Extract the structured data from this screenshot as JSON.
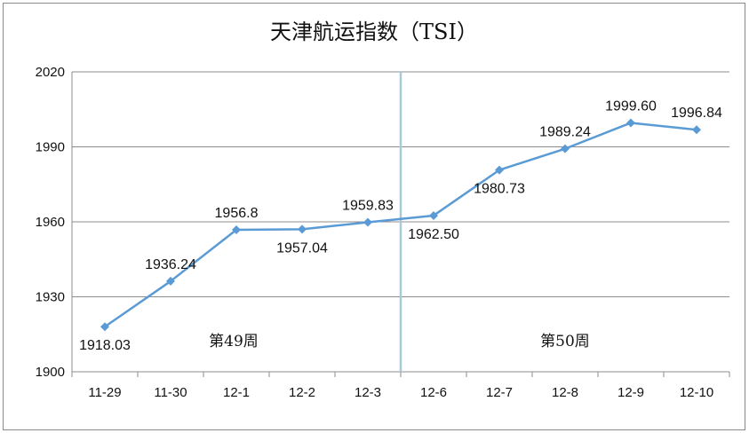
{
  "chart_data": {
    "type": "line",
    "title": "天津航运指数（TSI）",
    "xlabel": "",
    "ylabel": "",
    "categories": [
      "11-29",
      "11-30",
      "12-1",
      "12-2",
      "12-3",
      "12-6",
      "12-7",
      "12-8",
      "12-9",
      "12-10"
    ],
    "series": [
      {
        "values": [
          1918.03,
          1936.24,
          1956.8,
          1957.04,
          1959.83,
          1962.5,
          1980.73,
          1989.24,
          1999.6,
          1996.84
        ],
        "data_labels": [
          "1918.03",
          "1936.24",
          "1956.8",
          "1957.04",
          "1959.83",
          "1962.50",
          "1980.73",
          "1989.24",
          "1999.60",
          "1996.84"
        ],
        "color": "#5b9bd5"
      }
    ],
    "ylim": [
      1900,
      2020
    ],
    "yticks": [
      "1900",
      "1930",
      "1960",
      "1990",
      "2020"
    ],
    "grid": true,
    "legend": "none",
    "separator_color": "#a9c9da",
    "annotations": [
      "第49周",
      "第50周"
    ]
  }
}
